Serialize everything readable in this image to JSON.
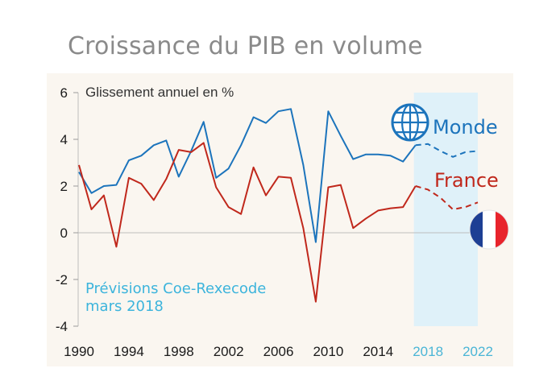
{
  "title": "Croissance du PIB en volume",
  "colors": {
    "world": "#1c74bc",
    "france": "#c0281c",
    "forecast_bg": "#dff1f9",
    "forecast_text": "#3cb4dc",
    "panel_bg": "#faf6f0"
  },
  "icons": [
    "globe-icon",
    "france-flag-icon"
  ],
  "chart_data": {
    "type": "line",
    "title": "Croissance du PIB en volume",
    "ylabel": "Glissement annuel en %",
    "xlabel": "",
    "ylim": [
      -4,
      6
    ],
    "xlim": [
      1990,
      2022
    ],
    "yticks": [
      "6",
      "4",
      "2",
      "0",
      "-2",
      "-4"
    ],
    "xticks": [
      "1990",
      "1994",
      "1998",
      "2002",
      "2006",
      "2010",
      "2014",
      "2018",
      "2022"
    ],
    "forecast_xticks": [
      "2018",
      "2022"
    ],
    "forecast_start": 2017,
    "forecast_note": [
      "Prévisions Coe-Rexecode",
      "mars 2018"
    ],
    "legend": "inline labels at right",
    "grid": false,
    "series": [
      {
        "name": "Monde",
        "x": [
          1990,
          1991,
          1992,
          1993,
          1994,
          1995,
          1996,
          1997,
          1998,
          1999,
          2000,
          2001,
          2002,
          2003,
          2004,
          2005,
          2006,
          2007,
          2008,
          2009,
          2010,
          2011,
          2012,
          2013,
          2014,
          2015,
          2016,
          2017
        ],
        "values": [
          2.6,
          1.7,
          2.0,
          2.05,
          3.1,
          3.3,
          3.75,
          3.95,
          2.4,
          3.5,
          4.75,
          2.35,
          2.75,
          3.75,
          4.95,
          4.7,
          5.2,
          5.3,
          2.9,
          -0.4,
          5.2,
          4.15,
          3.15,
          3.35,
          3.35,
          3.3,
          3.05,
          3.75
        ],
        "forecast_x": [
          2017,
          2018,
          2019,
          2020,
          2021,
          2022
        ],
        "forecast_values": [
          3.75,
          3.8,
          3.5,
          3.25,
          3.45,
          3.5
        ]
      },
      {
        "name": "France",
        "x": [
          1990,
          1991,
          1992,
          1993,
          1994,
          1995,
          1996,
          1997,
          1998,
          1999,
          2000,
          2001,
          2002,
          2003,
          2004,
          2005,
          2006,
          2007,
          2008,
          2009,
          2010,
          2011,
          2012,
          2013,
          2014,
          2015,
          2016,
          2017
        ],
        "values": [
          2.9,
          1.0,
          1.6,
          -0.6,
          2.35,
          2.1,
          1.4,
          2.3,
          3.55,
          3.45,
          3.85,
          1.95,
          1.1,
          0.8,
          2.8,
          1.6,
          2.4,
          2.35,
          0.2,
          -2.95,
          1.95,
          2.05,
          0.2,
          0.6,
          0.95,
          1.05,
          1.1,
          2.0
        ],
        "forecast_x": [
          2017,
          2018,
          2019,
          2020,
          2021,
          2022
        ],
        "forecast_values": [
          2.0,
          1.85,
          1.5,
          1.0,
          1.1,
          1.3
        ]
      }
    ]
  }
}
